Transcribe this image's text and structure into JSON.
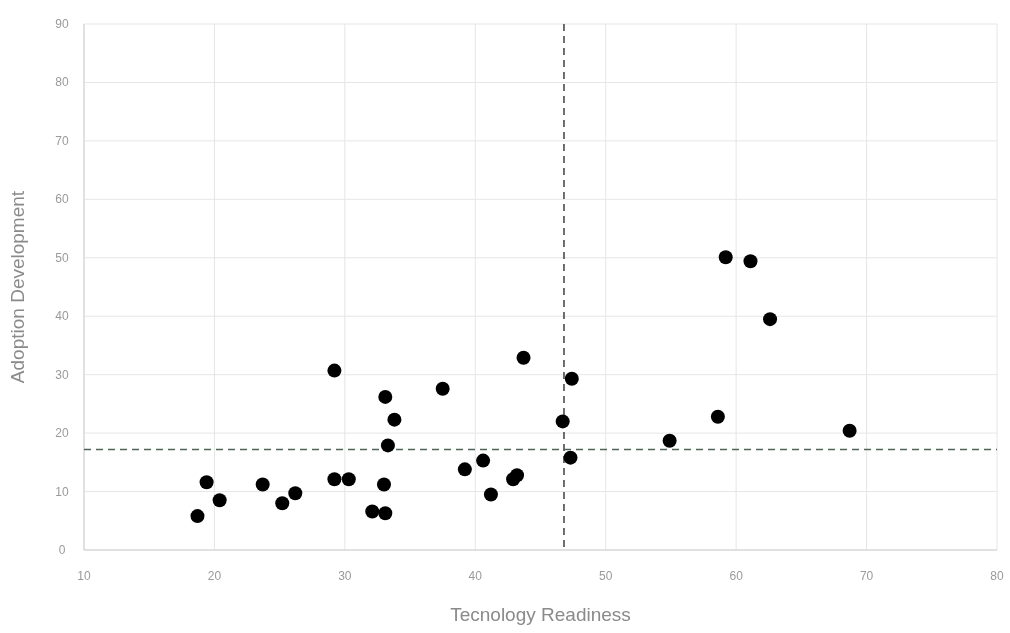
{
  "chart_data": {
    "type": "scatter",
    "xlabel": "Tecnology Readiness",
    "ylabel": "Adoption Development",
    "x": [
      18.7,
      19.4,
      20.4,
      23.7,
      25.2,
      26.2,
      29.2,
      29.2,
      30.3,
      32.1,
      33.1,
      33.0,
      33.1,
      33.8,
      33.3,
      37.5,
      39.2,
      40.6,
      41.2,
      42.9,
      43.2,
      43.7,
      46.7,
      47.4,
      47.3,
      54.9,
      58.6,
      59.2,
      61.1,
      62.6,
      68.7
    ],
    "values": [
      5.8,
      11.6,
      8.5,
      11.2,
      8.0,
      9.7,
      30.7,
      12.1,
      12.1,
      6.6,
      6.3,
      11.2,
      26.2,
      22.3,
      17.9,
      27.6,
      13.8,
      15.3,
      9.5,
      12.1,
      12.8,
      32.9,
      22.0,
      29.3,
      15.8,
      18.7,
      22.8,
      50.1,
      49.4,
      39.5,
      20.4
    ],
    "color": "#000000",
    "marker": "circle",
    "xlim": [
      10,
      80
    ],
    "xticks": [
      10,
      20,
      30,
      40,
      50,
      60,
      70,
      80
    ],
    "ylim": [
      0,
      90
    ],
    "yticks": [
      0,
      10,
      20,
      30,
      40,
      50,
      60,
      70,
      80,
      90
    ],
    "grid": true,
    "ref_lines": [
      {
        "axis": "x",
        "value": 46.8,
        "color": "#404040",
        "line_style": "dashed"
      },
      {
        "axis": "y",
        "value": 17.2,
        "color": "#4f6357",
        "line_style": "dashed"
      }
    ]
  }
}
